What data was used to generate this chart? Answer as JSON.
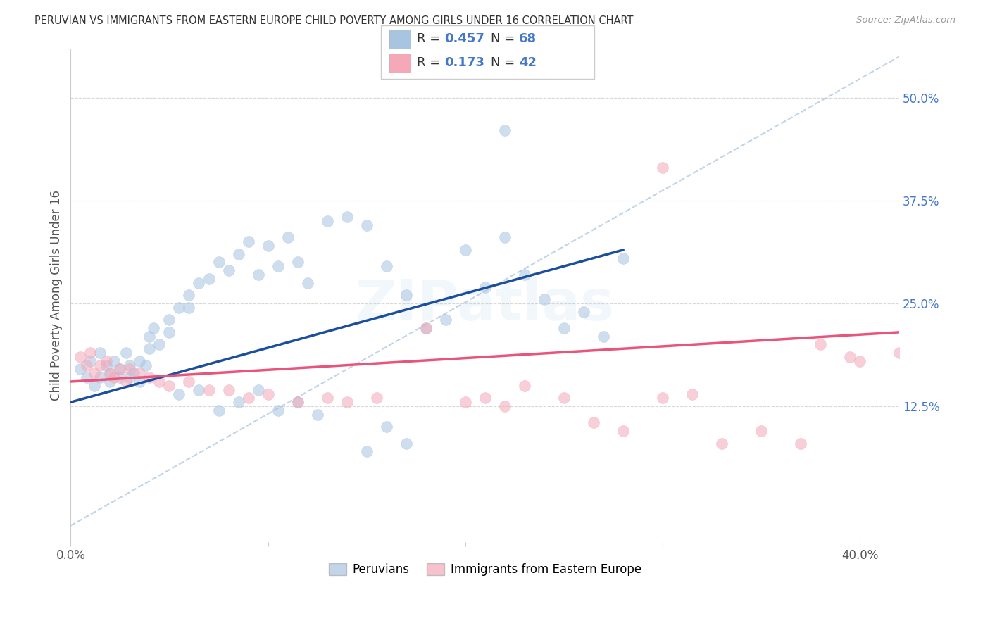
{
  "title": "PERUVIAN VS IMMIGRANTS FROM EASTERN EUROPE CHILD POVERTY AMONG GIRLS UNDER 16 CORRELATION CHART",
  "source": "Source: ZipAtlas.com",
  "ylabel": "Child Poverty Among Girls Under 16",
  "xlim": [
    0.0,
    0.42
  ],
  "ylim": [
    -0.04,
    0.56
  ],
  "y_ticks_right": [
    0.125,
    0.25,
    0.375,
    0.5
  ],
  "y_tick_labels_right": [
    "12.5%",
    "25.0%",
    "37.5%",
    "50.0%"
  ],
  "x_tick_positions": [
    0.0,
    0.1,
    0.2,
    0.3,
    0.4
  ],
  "x_tick_labels": [
    "0.0%",
    "",
    "",
    "",
    "40.0%"
  ],
  "blue_color": "#A8C4E0",
  "pink_color": "#F4A8B8",
  "trend_blue": "#1B4F9B",
  "trend_pink": "#E8547A",
  "diagonal_color": "#B0C8E0",
  "grid_color": "#D8D8D8",
  "label_color": "#4477CC",
  "watermark_text": "ZIPatlas",
  "blue_scatter_x": [
    0.005,
    0.008,
    0.01,
    0.012,
    0.015,
    0.015,
    0.018,
    0.02,
    0.02,
    0.022,
    0.025,
    0.025,
    0.028,
    0.03,
    0.03,
    0.032,
    0.035,
    0.035,
    0.038,
    0.04,
    0.04,
    0.042,
    0.045,
    0.05,
    0.05,
    0.055,
    0.06,
    0.06,
    0.065,
    0.07,
    0.075,
    0.08,
    0.085,
    0.09,
    0.095,
    0.1,
    0.105,
    0.11,
    0.115,
    0.12,
    0.13,
    0.14,
    0.15,
    0.16,
    0.17,
    0.18,
    0.19,
    0.2,
    0.21,
    0.22,
    0.23,
    0.24,
    0.25,
    0.26,
    0.27,
    0.28,
    0.22,
    0.15,
    0.16,
    0.17,
    0.055,
    0.065,
    0.075,
    0.085,
    0.095,
    0.105,
    0.115,
    0.125
  ],
  "blue_scatter_y": [
    0.17,
    0.16,
    0.18,
    0.15,
    0.19,
    0.16,
    0.175,
    0.165,
    0.155,
    0.18,
    0.17,
    0.16,
    0.19,
    0.175,
    0.16,
    0.165,
    0.18,
    0.155,
    0.175,
    0.21,
    0.195,
    0.22,
    0.2,
    0.23,
    0.215,
    0.245,
    0.26,
    0.245,
    0.275,
    0.28,
    0.3,
    0.29,
    0.31,
    0.325,
    0.285,
    0.32,
    0.295,
    0.33,
    0.3,
    0.275,
    0.35,
    0.355,
    0.345,
    0.295,
    0.26,
    0.22,
    0.23,
    0.315,
    0.27,
    0.33,
    0.285,
    0.255,
    0.22,
    0.24,
    0.21,
    0.305,
    0.46,
    0.07,
    0.1,
    0.08,
    0.14,
    0.145,
    0.12,
    0.13,
    0.145,
    0.12,
    0.13,
    0.115
  ],
  "pink_scatter_x": [
    0.005,
    0.008,
    0.01,
    0.012,
    0.015,
    0.018,
    0.02,
    0.022,
    0.025,
    0.028,
    0.03,
    0.035,
    0.04,
    0.045,
    0.05,
    0.06,
    0.07,
    0.08,
    0.09,
    0.1,
    0.115,
    0.13,
    0.14,
    0.155,
    0.18,
    0.2,
    0.21,
    0.22,
    0.23,
    0.25,
    0.265,
    0.28,
    0.3,
    0.315,
    0.33,
    0.35,
    0.37,
    0.38,
    0.395,
    0.4,
    0.42,
    0.3
  ],
  "pink_scatter_y": [
    0.185,
    0.175,
    0.19,
    0.165,
    0.175,
    0.18,
    0.165,
    0.16,
    0.17,
    0.155,
    0.17,
    0.165,
    0.16,
    0.155,
    0.15,
    0.155,
    0.145,
    0.145,
    0.135,
    0.14,
    0.13,
    0.135,
    0.13,
    0.135,
    0.22,
    0.13,
    0.135,
    0.125,
    0.15,
    0.135,
    0.105,
    0.095,
    0.135,
    0.14,
    0.08,
    0.095,
    0.08,
    0.2,
    0.185,
    0.18,
    0.19,
    0.415
  ],
  "blue_trend_x": [
    0.0,
    0.28
  ],
  "blue_trend_y": [
    0.13,
    0.315
  ],
  "pink_trend_x": [
    0.0,
    0.42
  ],
  "pink_trend_y": [
    0.155,
    0.215
  ]
}
